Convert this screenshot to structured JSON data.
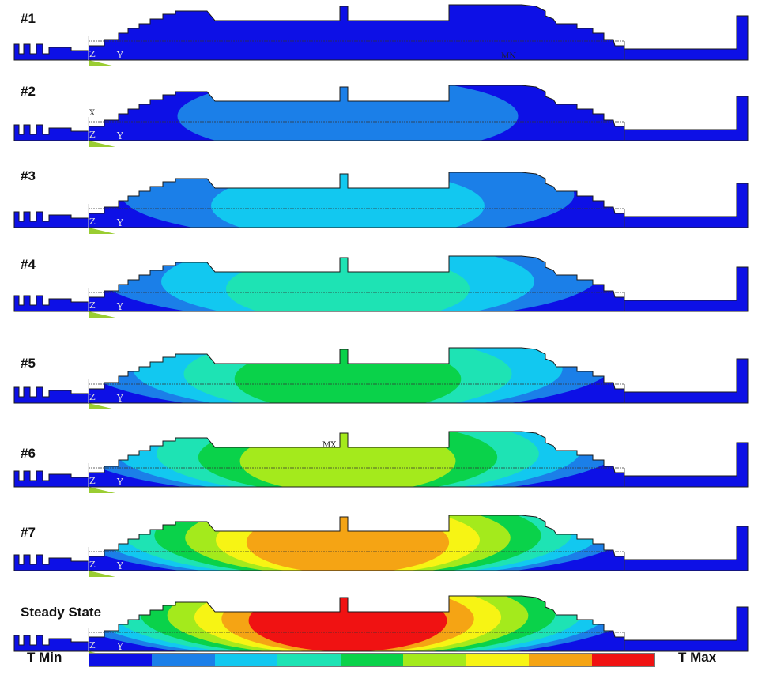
{
  "panels": [
    {
      "label": "#1",
      "level": 0.05,
      "marker": "MN"
    },
    {
      "label": "#2",
      "level": 0.16,
      "marker": ""
    },
    {
      "label": "#3",
      "level": 0.28,
      "marker": ""
    },
    {
      "label": "#4",
      "level": 0.42,
      "marker": ""
    },
    {
      "label": "#5",
      "level": 0.56,
      "marker": ""
    },
    {
      "label": "#6",
      "level": 0.68,
      "marker": "MX"
    },
    {
      "label": "#7",
      "level": 0.84,
      "marker": ""
    },
    {
      "label": "Steady State",
      "level": 0.96,
      "marker": ""
    }
  ],
  "axis_labels": {
    "y": "Y",
    "z": "Z",
    "x": "X"
  },
  "legend": {
    "min_label": "T Min",
    "max_label": "T Max",
    "colors": [
      "#0d10e6",
      "#1b7fe8",
      "#12c8f0",
      "#1ee3b4",
      "#0ad24a",
      "#a4ea1c",
      "#f7f414",
      "#f5a414",
      "#f01212"
    ]
  }
}
